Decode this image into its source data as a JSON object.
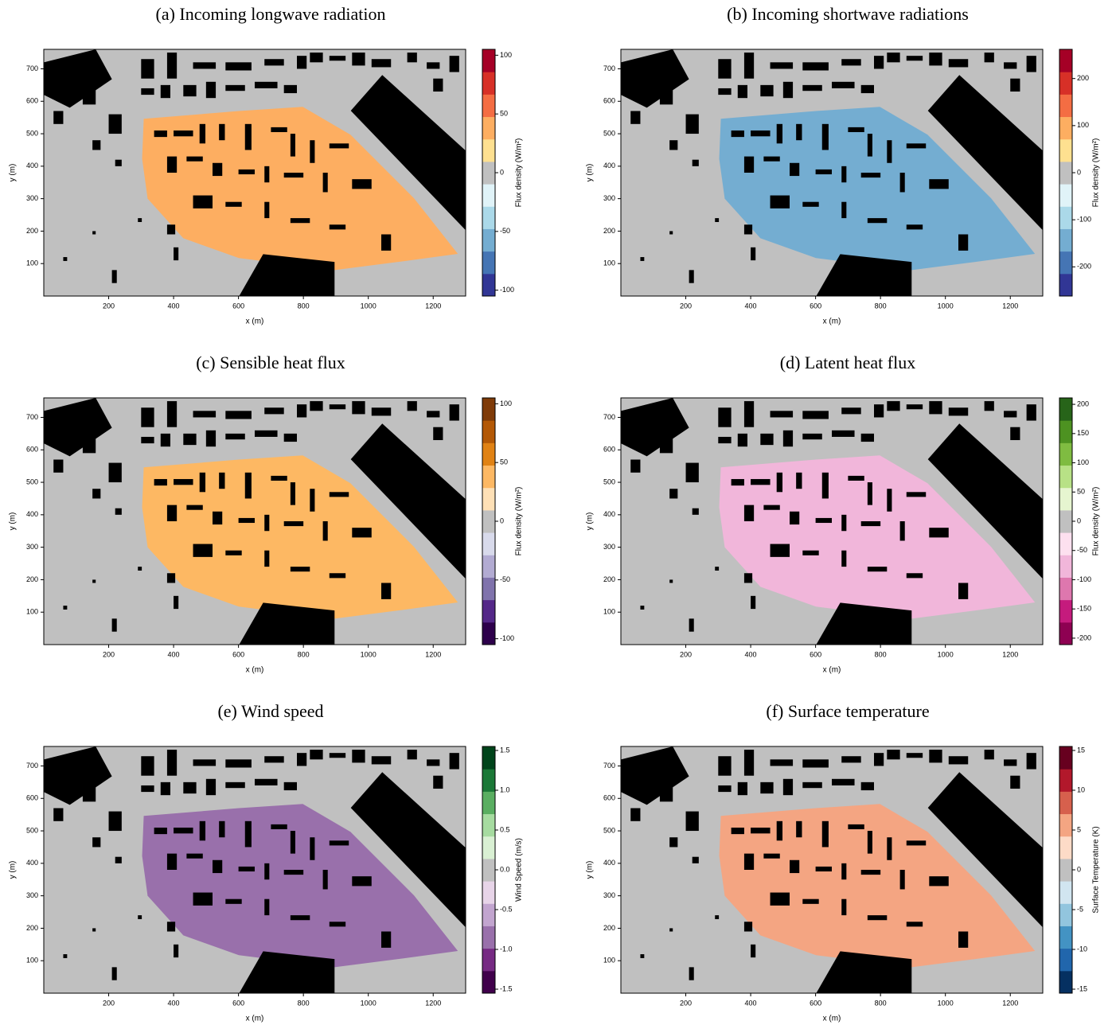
{
  "chart_data": [
    {
      "type": "raster",
      "title": "(a) Incoming longwave radiation",
      "xlabel": "x (m)",
      "ylabel": "y (m)",
      "xlim": [
        0,
        1300
      ],
      "xticks": [
        200,
        400,
        600,
        800,
        1000,
        1200
      ],
      "ylim": [
        0,
        760
      ],
      "yticks": [
        100,
        200,
        300,
        400,
        500,
        600,
        700
      ],
      "colorbar_label": "Flux density (W/m²)",
      "clim": [
        -105,
        105
      ],
      "cticks": [
        -100,
        -50,
        0,
        50,
        100
      ],
      "colors": [
        "#313695",
        "#4575b4",
        "#74add1",
        "#abd9e9",
        "#e0f3f8",
        "#c0c0c0",
        "#fee090",
        "#fdae61",
        "#f46d43",
        "#d73027",
        "#a50026"
      ]
    },
    {
      "type": "raster",
      "title": "(b) Incoming shortwave radiations",
      "xlabel": "x (m)",
      "ylabel": "y (m)",
      "xlim": [
        0,
        1300
      ],
      "xticks": [
        200,
        400,
        600,
        800,
        1000,
        1200
      ],
      "ylim": [
        0,
        760
      ],
      "yticks": [
        100,
        200,
        300,
        400,
        500,
        600,
        700
      ],
      "colorbar_label": "Flux density (W/m²)",
      "clim": [
        -262,
        262
      ],
      "cticks": [
        -200,
        -100,
        0,
        100,
        200
      ],
      "colors": [
        "#313695",
        "#4575b4",
        "#74add1",
        "#abd9e9",
        "#e0f3f8",
        "#c0c0c0",
        "#fee090",
        "#fdae61",
        "#f46d43",
        "#d73027",
        "#a50026"
      ]
    },
    {
      "type": "raster",
      "title": "(c) Sensible heat flux",
      "xlabel": "x (m)",
      "ylabel": "y (m)",
      "xlim": [
        0,
        1300
      ],
      "xticks": [
        200,
        400,
        600,
        800,
        1000,
        1200
      ],
      "ylim": [
        0,
        760
      ],
      "yticks": [
        100,
        200,
        300,
        400,
        500,
        600,
        700
      ],
      "colorbar_label": "Flux density (W/m²)",
      "clim": [
        -105,
        105
      ],
      "cticks": [
        -100,
        -50,
        0,
        50,
        100
      ],
      "colors": [
        "#2d004b",
        "#542788",
        "#8073ac",
        "#b2abd2",
        "#d8daeb",
        "#c0c0c0",
        "#fee0b6",
        "#fdb863",
        "#e08214",
        "#b35806",
        "#7f3b08"
      ]
    },
    {
      "type": "raster",
      "title": "(d) Latent heat flux",
      "xlabel": "x (m)",
      "ylabel": "y (m)",
      "xlim": [
        0,
        1300
      ],
      "xticks": [
        200,
        400,
        600,
        800,
        1000,
        1200
      ],
      "ylim": [
        0,
        760
      ],
      "yticks": [
        100,
        200,
        300,
        400,
        500,
        600,
        700
      ],
      "colorbar_label": "Flux density (W/m²)",
      "clim": [
        -211,
        211
      ],
      "cticks": [
        -200,
        -150,
        -100,
        -50,
        0,
        50,
        100,
        150,
        200
      ],
      "colors": [
        "#8e0152",
        "#c51b7d",
        "#de77ae",
        "#f1b6da",
        "#fde0ef",
        "#c0c0c0",
        "#e6f5d0",
        "#b8e186",
        "#7fbc41",
        "#4d9221",
        "#276419"
      ]
    },
    {
      "type": "raster",
      "title": "(e) Wind speed",
      "xlabel": "x (m)",
      "ylabel": "y (m)",
      "xlim": [
        0,
        1300
      ],
      "xticks": [
        200,
        400,
        600,
        800,
        1000,
        1200
      ],
      "ylim": [
        0,
        760
      ],
      "yticks": [
        100,
        200,
        300,
        400,
        500,
        600,
        700
      ],
      "colorbar_label": "Wind Speed (m/s)",
      "clim": [
        -1.55,
        1.55
      ],
      "cticks": [
        -1.5,
        {
          "value": -1,
          "label": "-1.0"
        },
        -0.5,
        {
          "value": 0,
          "label": "0.0"
        },
        0.5,
        {
          "value": 1,
          "label": "1.0"
        },
        1.5
      ],
      "colors": [
        "#40004b",
        "#762a83",
        "#9970ab",
        "#c2a5cf",
        "#e7d4e8",
        "#c0c0c0",
        "#d9f0d3",
        "#a6dba0",
        "#5aae61",
        "#1b7837",
        "#00441b"
      ]
    },
    {
      "type": "raster",
      "title": "(f) Surface temperature",
      "xlabel": "x (m)",
      "ylabel": "y (m)",
      "xlim": [
        0,
        1300
      ],
      "xticks": [
        200,
        400,
        600,
        800,
        1000,
        1200
      ],
      "ylim": [
        0,
        760
      ],
      "yticks": [
        100,
        200,
        300,
        400,
        500,
        600,
        700
      ],
      "colorbar_label": "Surface Temperature (K)",
      "clim": [
        -15.5,
        15.5
      ],
      "cticks": [
        -15,
        -10,
        -5,
        0,
        5,
        10,
        15
      ],
      "colors": [
        "#053061",
        "#2166ac",
        "#4393c3",
        "#92c5de",
        "#d1e5f0",
        "#c0c0c0",
        "#fddbc7",
        "#f4a582",
        "#d6604d",
        "#b2182b",
        "#67001f"
      ]
    }
  ]
}
